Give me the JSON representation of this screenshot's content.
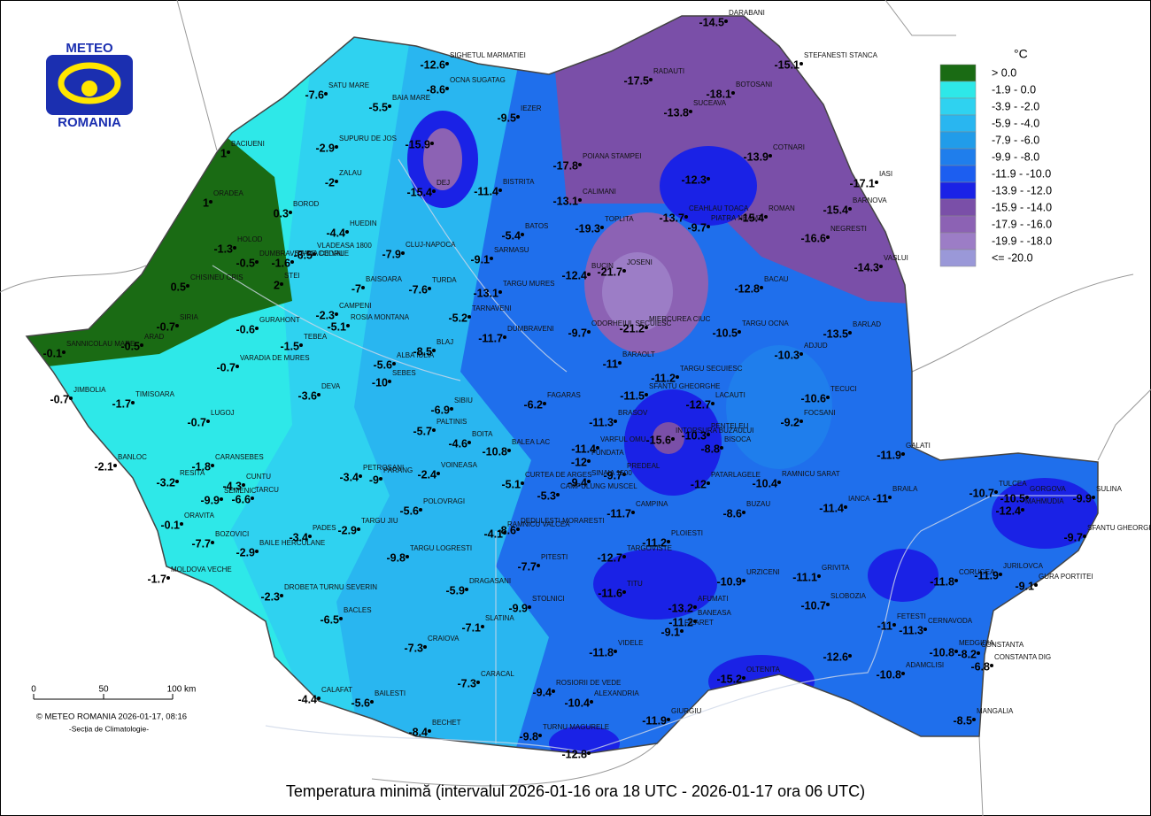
{
  "logo": {
    "top": "METEO",
    "bottom": "ROMANIA"
  },
  "title": "Temperatura minimă (intervalul 2026-01-16 ora 18 UTC - 2026-01-17 ora 06 UTC)",
  "credit": "© METEO ROMANIA 2026-01-17, 08:16",
  "department": "-Secția de Climatologie-",
  "scale_bar": {
    "labels": [
      "0",
      "50",
      "100 km"
    ]
  },
  "legend": {
    "unit": "°C",
    "items": [
      {
        "label": "> 0.0",
        "color": "#1a6b14"
      },
      {
        "label": "-1.9 - 0.0",
        "color": "#2ee8e8"
      },
      {
        "label": "-3.9 - -2.0",
        "color": "#2fd2f0"
      },
      {
        "label": "-5.9 - -4.0",
        "color": "#29b6f0"
      },
      {
        "label": "-7.9 - -6.0",
        "color": "#219ce9"
      },
      {
        "label": "-9.9 - -8.0",
        "color": "#1f7eec"
      },
      {
        "label": "-11.9 - -10.0",
        "color": "#1c5ef0"
      },
      {
        "label": "-13.9 - -12.0",
        "color": "#1a22e6"
      },
      {
        "label": "-15.9 - -14.0",
        "color": "#7a4fa8"
      },
      {
        "label": "-17.9 - -16.0",
        "color": "#8c62b4"
      },
      {
        "label": "-19.9 - -18.0",
        "color": "#9c7dc6"
      },
      {
        "label": "<= -20.0",
        "color": "#9a98d8"
      }
    ]
  },
  "stations": [
    {
      "name": "SIGHETUL MARMATIEI",
      "value": -12.6
    },
    {
      "name": "SATU MARE",
      "value": -7.6
    },
    {
      "name": "BAIA MARE",
      "value": -5.5
    },
    {
      "name": "OCNA SUGATAG",
      "value": -8.6
    },
    {
      "name": "IEZER",
      "value": -9.5
    },
    {
      "name": "RADAUTI",
      "value": -17.5
    },
    {
      "name": "DARABANI",
      "value": -14.5
    },
    {
      "name": "STEFANESTI STANCA",
      "value": -15.1
    },
    {
      "name": "BOTOSANI",
      "value": -18.1
    },
    {
      "name": "SUCEAVA",
      "value": -13.8
    },
    {
      "name": "SUPURU DE JOS",
      "value": -2.9
    },
    {
      "name": "BACIUENI",
      "value": 1
    },
    {
      "name": "ZALAU",
      "value": -2
    },
    {
      "name": "DEJ",
      "value": -15.4
    },
    {
      "value": -15.9
    },
    {
      "name": "BISTRITA",
      "value": -11.4
    },
    {
      "name": "POIANA STAMPEI",
      "value": -17.8
    },
    {
      "name": "CALIMANI",
      "value": -13.1
    },
    {
      "name": "COTNARI",
      "value": -13.9
    },
    {
      "name": "IASI",
      "value": -17.1
    },
    {
      "value": -12.3
    },
    {
      "name": "ORADEA",
      "value": 1
    },
    {
      "name": "BOROD",
      "value": 0.3
    },
    {
      "name": "HUEDIN",
      "value": -4.4
    },
    {
      "name": "VLADEASA 1800",
      "value": -6.5
    },
    {
      "name": "CLUJ-NAPOCA",
      "value": -7.9
    },
    {
      "name": "SARMASU",
      "value": -9.1
    },
    {
      "name": "BATOS",
      "value": -5.4
    },
    {
      "name": "TOPLITA",
      "value": -19.3
    },
    {
      "name": "CEAHLAU TOACA",
      "value": -13.7
    },
    {
      "name": "PIATRA NEAMT",
      "value": -9.7
    },
    {
      "name": "ROMAN",
      "value": -15.4
    },
    {
      "name": "BARNOVA",
      "value": -15.4
    },
    {
      "name": "NEGRESTI",
      "value": -16.6
    },
    {
      "name": "VASLUI",
      "value": -14.3
    },
    {
      "name": "HOLOD",
      "value": -1.3
    },
    {
      "name": "CHISINEU CRIS",
      "value": 0.5
    },
    {
      "name": "DUMBRAVITA DE CODRU",
      "value": -0.5
    },
    {
      "name": "STEI",
      "value": 2
    },
    {
      "name": "STANA DE VALE",
      "value": -1.6
    },
    {
      "name": "BAISOARA",
      "value": -7
    },
    {
      "name": "TURDA",
      "value": -7.6
    },
    {
      "name": "TARGU MURES",
      "value": -13.1
    },
    {
      "name": "BUCIN",
      "value": -12.4
    },
    {
      "name": "JOSENI",
      "value": -21.7
    },
    {
      "name": "BACAU",
      "value": -12.8
    },
    {
      "name": "SIRIA",
      "value": -0.7
    },
    {
      "name": "GURAHONT",
      "value": -0.6
    },
    {
      "name": "CAMPENI",
      "value": -2.3
    },
    {
      "name": "ROSIA MONTANA",
      "value": -5.1
    },
    {
      "name": "TARNAVENI",
      "value": -5.2
    },
    {
      "name": "ODORHEIUL SECUIESC",
      "value": -9.7
    },
    {
      "name": "MIERCUREA CIUC",
      "value": -21.2
    },
    {
      "name": "TARGU OCNA",
      "value": -10.5
    },
    {
      "name": "BARLAD",
      "value": -13.5
    },
    {
      "name": "SANNICOLAU MARE",
      "value": -0.1
    },
    {
      "name": "ARAD",
      "value": -0.5
    },
    {
      "name": "TEBEA",
      "value": -1.5
    },
    {
      "name": "VARADIA DE MURES",
      "value": -0.7
    },
    {
      "name": "ALBA IULIA",
      "value": -5.6
    },
    {
      "name": "BLAJ",
      "value": -8.5
    },
    {
      "name": "DUMBRAVENI",
      "value": -11.7
    },
    {
      "name": "BARAOLT",
      "value": -11
    },
    {
      "name": "TARGU SECUIESC",
      "value": -11.2
    },
    {
      "name": "ADJUD",
      "value": -10.3
    },
    {
      "name": "SEBES",
      "value": -10
    },
    {
      "name": "SFANTU GHEORGHE",
      "value": -11.5
    },
    {
      "name": "TECUCI",
      "value": -10.6
    },
    {
      "name": "JIMBOLIA",
      "value": -0.7
    },
    {
      "name": "TIMISOARA",
      "value": -1.7
    },
    {
      "name": "DEVA",
      "value": -3.6
    },
    {
      "name": "SIBIU",
      "value": -6.9
    },
    {
      "name": "FAGARAS",
      "value": -6.2
    },
    {
      "name": "LACAUTI",
      "value": -12.7
    },
    {
      "name": "FOCSANI",
      "value": -9.2
    },
    {
      "name": "LUGOJ",
      "value": -0.7
    },
    {
      "name": "PALTINIS",
      "value": -5.7
    },
    {
      "name": "BOITA",
      "value": -4.6
    },
    {
      "name": "BALEA LAC",
      "value": -10.8
    },
    {
      "name": "BRASOV",
      "value": -11.3
    },
    {
      "name": "INTORSURA BUZAULUI",
      "value": -15.6
    },
    {
      "name": "PENTELEU",
      "value": -10.3
    },
    {
      "name": "BISOCA",
      "value": -8.8
    },
    {
      "name": "GALATI",
      "value": -11.9
    },
    {
      "name": "BANLOC",
      "value": -2.1
    },
    {
      "name": "CARANSEBES",
      "value": -1.8
    },
    {
      "name": "VARFUL OMU",
      "value": -11.4
    },
    {
      "name": "FUNDATA",
      "value": -12
    },
    {
      "name": "PREDEAL",
      "value": -9.7
    },
    {
      "name": "RAMNICU SARAT",
      "value": -10.4
    },
    {
      "name": "PATARLAGELE",
      "value": -12
    },
    {
      "name": "RESITA",
      "value": -3.2
    },
    {
      "name": "CUNTU",
      "value": -4.3
    },
    {
      "name": "TARCU",
      "value": -6.6
    },
    {
      "name": "PETROSANI",
      "value": -3.4
    },
    {
      "name": "PARANG",
      "value": -9
    },
    {
      "name": "VOINEASA",
      "value": -2.4
    },
    {
      "name": "CURTEA DE ARGES",
      "value": -5.1
    },
    {
      "name": "SINAIA 1500",
      "value": -9.4
    },
    {
      "name": "TULCEA",
      "value": -10.7
    },
    {
      "name": "GORGOVA",
      "value": -10.5
    },
    {
      "name": "SULINA",
      "value": -9.9
    },
    {
      "name": "BRAILA",
      "value": -11
    },
    {
      "name": "IANCA",
      "value": -11.4
    },
    {
      "name": "SEMENIC",
      "value": -9.9
    },
    {
      "name": "CAMPULUNG MUSCEL",
      "value": -5.3
    },
    {
      "name": "BUZAU",
      "value": -8.6
    },
    {
      "name": "MAHMUDIA",
      "value": -12.4
    },
    {
      "name": "ORAVITA",
      "value": -0.1
    },
    {
      "name": "RAMNICU VALCEA",
      "value": -4.1
    },
    {
      "name": "DEDULESTI MORARESTI",
      "value": -8.6
    },
    {
      "name": "CAMPINA",
      "value": -11.7
    },
    {
      "name": "POLOVRAGI",
      "value": -5.6
    },
    {
      "name": "BAILE HERCULANE",
      "value": -2.9
    },
    {
      "name": "BOZOVICI",
      "value": -7.7
    },
    {
      "name": "PADES",
      "value": -3.4
    },
    {
      "name": "TARGU JIU",
      "value": -2.9
    },
    {
      "name": "SFANTU GHEORGHE",
      "value": -9.7
    },
    {
      "name": "TARGU LOGRESTI",
      "value": -9.8
    },
    {
      "name": "PLOIESTI",
      "value": -11.2
    },
    {
      "name": "TARGOVISTE",
      "value": -12.7
    },
    {
      "name": "MOLDOVA VECHE",
      "value": -1.7
    },
    {
      "name": "PITESTI",
      "value": -7.7
    },
    {
      "name": "URZICENI",
      "value": -10.9
    },
    {
      "name": "GRIVITA",
      "value": -11.1
    },
    {
      "name": "CORUGEA",
      "value": -11.8
    },
    {
      "name": "JURILOVCA",
      "value": -11.9
    },
    {
      "name": "GURA PORTITEI",
      "value": -9.1
    },
    {
      "name": "DRAGASANI",
      "value": -5.9
    },
    {
      "name": "TITU",
      "value": -11.6
    },
    {
      "name": "DROBETA TURNU SEVERIN",
      "value": -2.3
    },
    {
      "name": "SLOBOZIA",
      "value": -10.7
    },
    {
      "name": "STOLNICI",
      "value": -9.9
    },
    {
      "name": "AFUMATI",
      "value": -13.2
    },
    {
      "name": "BANEASA",
      "value": -11.2
    },
    {
      "name": "BACLES",
      "value": -6.5
    },
    {
      "name": "SLATINA",
      "value": -7.1
    },
    {
      "name": "FILARET",
      "value": -9.1
    },
    {
      "name": "FETESTI",
      "value": -11
    },
    {
      "name": "CERNAVODA",
      "value": -11.3
    },
    {
      "name": "CRAIOVA",
      "value": -7.3
    },
    {
      "name": "VIDELE",
      "value": -11.8
    },
    {
      "name": "MEDGIDIA",
      "value": -10.8
    },
    {
      "name": "CONSTANTA",
      "value": -8.2
    },
    {
      "name": "CONSTANTA DIG",
      "value": -6.8
    },
    {
      "name": "ROSIORII DE VEDE",
      "value": -9.4
    },
    {
      "name": "OLTENITA",
      "value": -15.2
    },
    {
      "name": "ADAMCLISI",
      "value": -10.8
    },
    {
      "value": -12.6
    },
    {
      "name": "CARACAL",
      "value": -7.3
    },
    {
      "name": "ALEXANDRIA",
      "value": -10.4
    },
    {
      "name": "CALAFAT",
      "value": -4.4
    },
    {
      "name": "BAILESTI",
      "value": -5.6
    },
    {
      "name": "GIURGIU",
      "value": -11.9
    },
    {
      "name": "MANGALIA",
      "value": -8.5
    },
    {
      "name": "BECHET",
      "value": -8.4
    },
    {
      "name": "TURNU MAGURELE",
      "value": -9.8
    },
    {
      "value": -12.8
    }
  ]
}
